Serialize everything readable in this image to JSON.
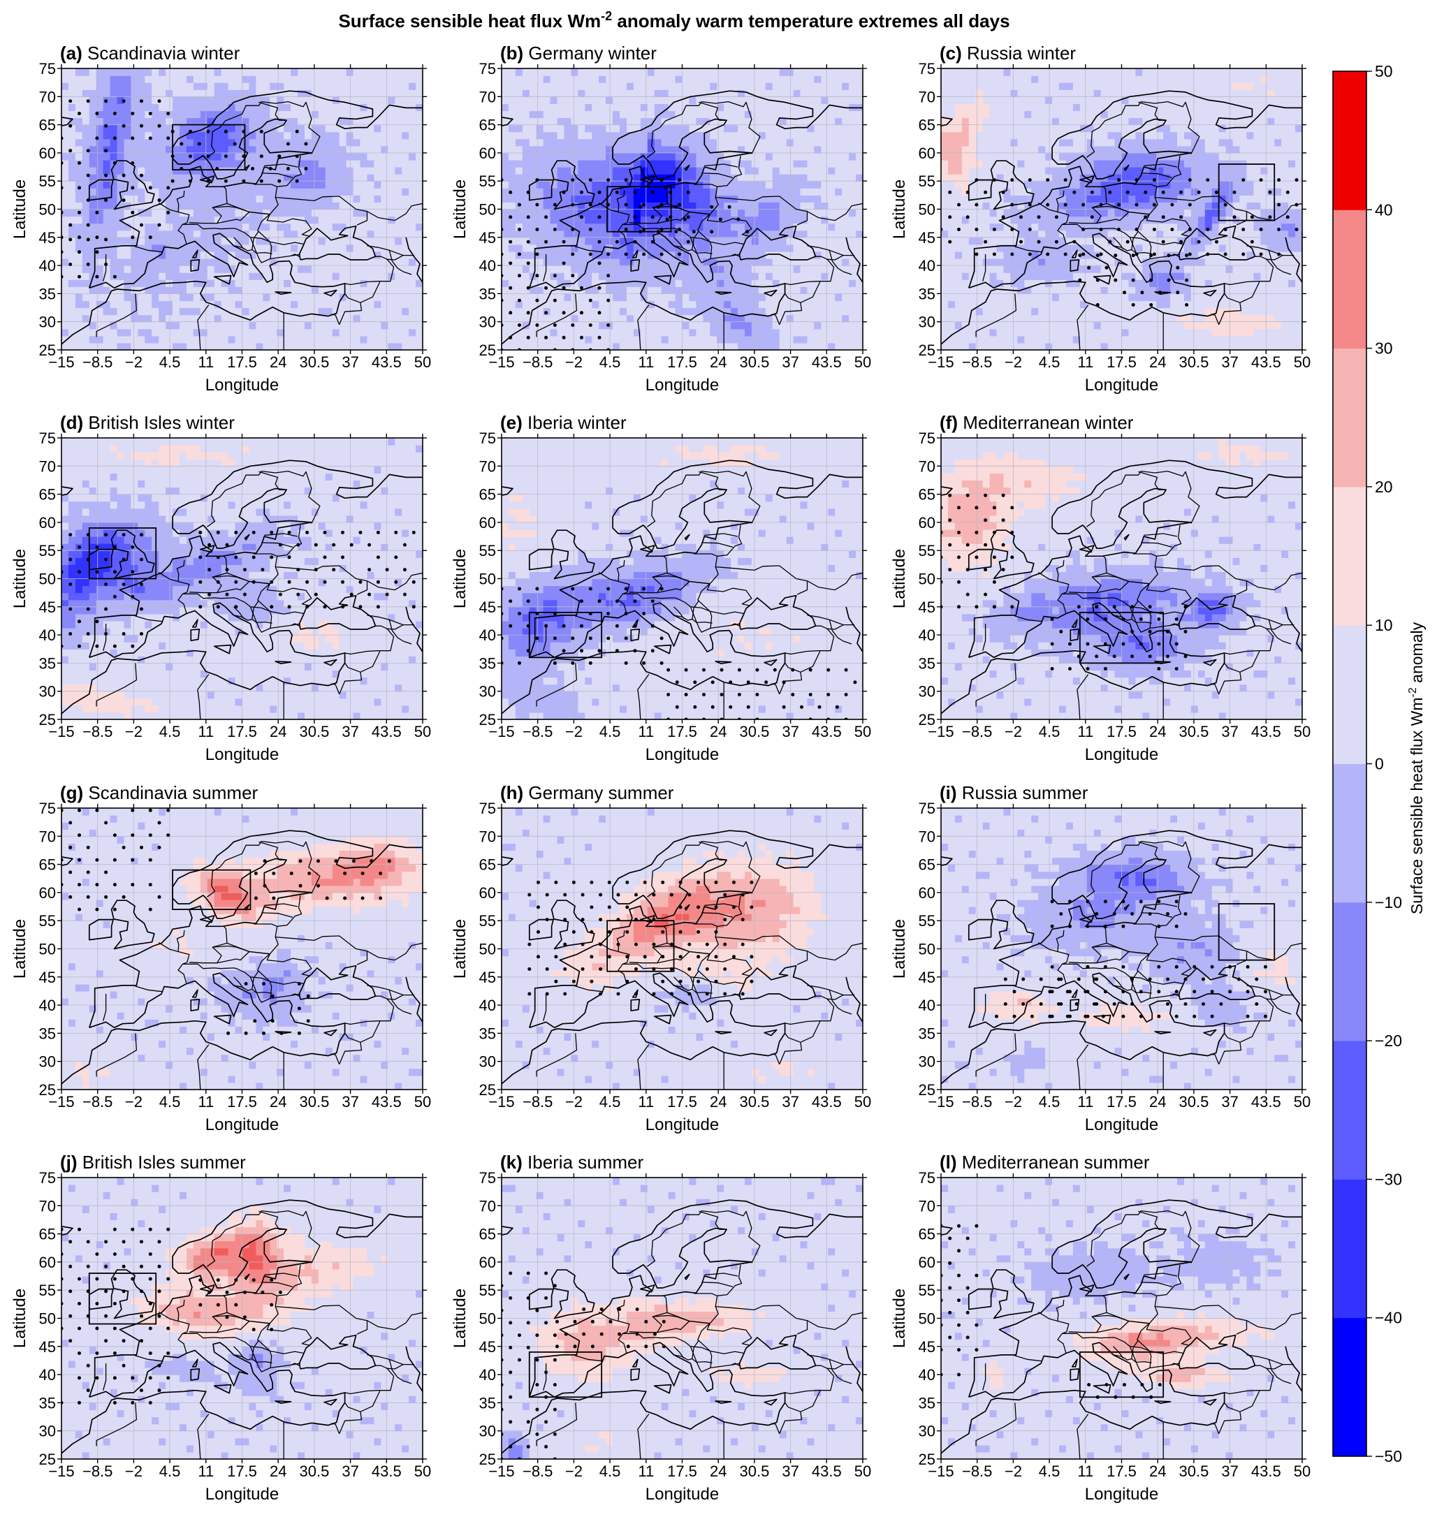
{
  "chart_data": {
    "type": "heatmap",
    "title": "Surface sensible heat flux Wm-2 anomaly warm temperature extremes all days",
    "title_main": "Surface sensible heat flux Wm",
    "title_sup": "-2",
    "title_rest": " anomaly warm temperature extremes all days",
    "xlabel": "Longitude",
    "ylabel": "Latitude",
    "xlim": [
      -15,
      50
    ],
    "ylim": [
      25,
      75
    ],
    "xticks": [
      "−15",
      "−8.5",
      "−2",
      "4.5",
      "11",
      "17.5",
      "24",
      "30.5",
      "37",
      "43.5",
      "50"
    ],
    "xtick_values": [
      -15,
      -8.5,
      -2,
      4.5,
      11,
      17.5,
      24,
      30.5,
      37,
      43.5,
      50
    ],
    "yticks": [
      "25",
      "30",
      "35",
      "40",
      "45",
      "50",
      "55",
      "60",
      "65",
      "70",
      "75"
    ],
    "ytick_values": [
      25,
      30,
      35,
      40,
      45,
      50,
      55,
      60,
      65,
      70,
      75
    ],
    "colorbar": {
      "label_main": "Surface sensible heat flux Wm",
      "label_sup": "-2",
      "label_rest": " anomaly",
      "levels": [
        -50,
        -40,
        -30,
        -20,
        -10,
        0,
        10,
        20,
        30,
        40,
        50
      ],
      "tick_labels": [
        "−50",
        "−40",
        "−30",
        "−20",
        "−10",
        "0",
        "10",
        "20",
        "30",
        "40",
        "50"
      ],
      "colors": [
        "#0000ff",
        "#3333ff",
        "#5c5cff",
        "#8888fb",
        "#b4b4f8",
        "#dcdcf7",
        "#fbdcdc",
        "#f7b4b4",
        "#f48888",
        "#f15c5c",
        "#ee0000"
      ]
    },
    "panels": [
      {
        "letter": "(a)",
        "name": "Scandinavia winter",
        "box": [
          5,
          18,
          57,
          65
        ],
        "field": [
          [
            -25,
            -6,
            52,
            72,
            4.5,
            13,
            -22
          ],
          [
            -28,
            12,
            60,
            64,
            8,
            6,
            40
          ],
          [
            -20,
            -30,
            53,
            50,
            6,
            5,
            -15
          ],
          [
            -10,
            2,
            40,
            44,
            4,
            3,
            8
          ],
          [
            -5,
            11,
            35,
            57,
            16,
            12,
            -20
          ],
          [
            -15,
            30,
            55,
            58,
            6,
            5,
            -20
          ]
        ],
        "stipple": [
          [
            -15,
            5,
            45,
            70
          ],
          [
            -15,
            -5,
            38,
            45
          ],
          [
            5,
            30,
            55,
            66
          ]
        ]
      },
      {
        "letter": "(b)",
        "name": "Germany winter",
        "box": [
          4,
          15.5,
          46,
          54
        ],
        "field": [
          [
            -26,
            5,
            52,
            47,
            14,
            9,
            -25
          ],
          [
            -28,
            16,
            56,
            50,
            10,
            6,
            -15
          ],
          [
            -15,
            15,
            55,
            60,
            5,
            5,
            10
          ],
          [
            -10,
            24,
            40,
            35,
            6,
            5,
            15
          ],
          [
            -14,
            33,
            45,
            52,
            6,
            5,
            -8
          ],
          [
            -18,
            10,
            38,
            67,
            3,
            3,
            10
          ],
          [
            -14,
            28,
            32,
            27,
            6,
            3,
            5
          ]
        ],
        "stipple": [
          [
            -15,
            20,
            42,
            56
          ],
          [
            -15,
            5,
            25,
            42
          ],
          [
            10,
            30,
            46,
            52
          ]
        ]
      },
      {
        "letter": "(c)",
        "name": "Russia winter",
        "box": [
          35,
          45,
          48,
          58
        ],
        "field": [
          [
            -24,
            21,
            55,
            56,
            11,
            5,
            -5
          ],
          [
            -26,
            34,
            44,
            55,
            4,
            3,
            0
          ],
          [
            -14,
            13,
            49,
            53,
            12,
            4,
            0
          ],
          [
            -18,
            25,
            37,
            38,
            4,
            3,
            0
          ],
          [
            -14,
            47,
            47,
            47,
            4,
            3,
            0
          ],
          [
            -12,
            3,
            40,
            41,
            7,
            3,
            0
          ],
          [
            22,
            -13,
            61,
            59,
            4,
            6,
            0
          ],
          [
            14,
            -9,
            65,
            68,
            3,
            4,
            0
          ],
          [
            8,
            40,
            72,
            72,
            10,
            3,
            0
          ],
          [
            12,
            38,
            30,
            30,
            12,
            3,
            0
          ]
        ],
        "stipple": [
          [
            -15,
            50,
            42,
            57
          ],
          [
            10,
            30,
            33,
            42
          ]
        ]
      },
      {
        "letter": "(d)",
        "name": "British Isles winter",
        "box": [
          -10,
          2,
          50,
          59
        ],
        "field": [
          [
            -26,
            -6,
            52,
            56,
            9,
            6,
            0
          ],
          [
            -22,
            -12,
            45,
            54,
            6,
            8,
            0
          ],
          [
            -16,
            12,
            48,
            57,
            12,
            4,
            0
          ],
          [
            -12,
            0,
            48,
            49,
            5,
            3,
            0
          ],
          [
            -10,
            19,
            47,
            44,
            6,
            4,
            0
          ],
          [
            12,
            -8,
            30,
            27,
            12,
            3,
            0
          ],
          [
            10,
            6,
            72,
            72,
            18,
            2.5,
            0
          ],
          [
            10,
            30,
            40,
            40,
            10,
            3,
            0
          ]
        ],
        "stipple": [
          [
            -15,
            0,
            38,
            60
          ],
          [
            10,
            50,
            45,
            60
          ]
        ]
      },
      {
        "letter": "(e)",
        "name": "Iberia winter",
        "box": [
          -10,
          3,
          36,
          44
        ],
        "field": [
          [
            -24,
            -9,
            40,
            44,
            7,
            7,
            0
          ],
          [
            -18,
            5,
            45,
            48,
            10,
            5,
            0
          ],
          [
            -12,
            15,
            45,
            52,
            10,
            5,
            0
          ],
          [
            10,
            25,
            72,
            72,
            16,
            3,
            0
          ],
          [
            8,
            -12,
            60,
            60,
            6,
            10,
            0
          ],
          [
            6,
            30,
            40,
            40,
            16,
            8,
            0
          ],
          [
            -10,
            -8,
            30,
            27,
            6,
            3,
            0
          ]
        ],
        "stipple": [
          [
            -15,
            15,
            35,
            50
          ],
          [
            15,
            50,
            25,
            35
          ]
        ]
      },
      {
        "letter": "(f)",
        "name": "Mediterranean winter",
        "box": [
          10,
          25,
          35,
          44
        ],
        "field": [
          [
            24,
            -10,
            60,
            60,
            7,
            8,
            0
          ],
          [
            14,
            0,
            68,
            67,
            12,
            5,
            0
          ],
          [
            -22,
            22,
            38,
            38,
            8,
            4,
            0
          ],
          [
            -26,
            34,
            44,
            45,
            4,
            3,
            0
          ],
          [
            -18,
            12,
            42,
            45,
            10,
            5,
            0
          ],
          [
            -12,
            0,
            42,
            47,
            6,
            3,
            0
          ],
          [
            10,
            40,
            72,
            72,
            10,
            3,
            0
          ],
          [
            -14,
            20,
            48,
            47,
            12,
            4,
            0
          ]
        ],
        "stipple": [
          [
            -15,
            -2,
            45,
            65
          ],
          [
            5,
            30,
            34,
            46
          ]
        ]
      },
      {
        "letter": "(g)",
        "name": "Scandinavia summer",
        "box": [
          5,
          19,
          57,
          64
        ],
        "field": [
          [
            34,
            15,
            62,
            57,
            6,
            4,
            0
          ],
          [
            24,
            30,
            62,
            63,
            14,
            5,
            0
          ],
          [
            22,
            42,
            64,
            65,
            8,
            5,
            0
          ],
          [
            -12,
            20,
            43,
            40,
            7,
            4,
            0
          ],
          [
            -12,
            25,
            45,
            45,
            4,
            3,
            0
          ],
          [
            8,
            5,
            52,
            50,
            8,
            4,
            0
          ],
          [
            8,
            -10,
            28,
            27,
            5,
            3,
            0
          ]
        ],
        "stipple": [
          [
            -15,
            5,
            57,
            75
          ],
          [
            20,
            45,
            59,
            66
          ],
          [
            15,
            30,
            35,
            45
          ]
        ]
      },
      {
        "letter": "(h)",
        "name": "Germany summer",
        "box": [
          4,
          16,
          46,
          55
        ],
        "field": [
          [
            24,
            12,
            50,
            58,
            10,
            5,
            0
          ],
          [
            20,
            22,
            55,
            58,
            14,
            9,
            0
          ],
          [
            14,
            33,
            56,
            58,
            10,
            8,
            0
          ],
          [
            12,
            0,
            46,
            46,
            6,
            4,
            0
          ],
          [
            -12,
            20,
            42,
            44,
            6,
            3,
            0
          ],
          [
            8,
            35,
            28,
            30,
            10,
            3,
            0
          ],
          [
            10,
            24,
            45,
            44,
            8,
            3,
            0
          ]
        ],
        "stipple": [
          [
            -10,
            30,
            42,
            62
          ]
        ]
      },
      {
        "letter": "(i)",
        "name": "Russia summer",
        "box": [
          35,
          45,
          48,
          58
        ],
        "field": [
          [
            -22,
            20,
            63,
            62,
            10,
            4,
            0
          ],
          [
            -14,
            12,
            55,
            56,
            10,
            5,
            0
          ],
          [
            -12,
            30,
            50,
            50,
            8,
            5,
            0
          ],
          [
            18,
            -2,
            40,
            40,
            6,
            3,
            0
          ],
          [
            12,
            17,
            38,
            38,
            10,
            3,
            0
          ],
          [
            10,
            45,
            48,
            45,
            5,
            5,
            0
          ],
          [
            -10,
            35,
            40,
            40,
            5,
            3,
            0
          ],
          [
            -10,
            0,
            30,
            30,
            3,
            2,
            0
          ]
        ],
        "stipple": [
          [
            5,
            30,
            54,
            60
          ],
          [
            5,
            45,
            38,
            48
          ],
          [
            -5,
            15,
            38,
            45
          ]
        ]
      },
      {
        "letter": "(j)",
        "name": "British Isles summer",
        "box": [
          -10,
          2,
          49,
          58
        ],
        "field": [
          [
            34,
            12,
            60,
            62,
            6,
            4,
            0
          ],
          [
            26,
            20,
            62,
            62,
            4,
            6,
            0
          ],
          [
            22,
            8,
            52,
            50,
            10,
            4,
            0
          ],
          [
            18,
            22,
            53,
            58,
            10,
            8,
            0
          ],
          [
            12,
            35,
            58,
            60,
            10,
            4,
            0
          ],
          [
            -14,
            20,
            43,
            42,
            4,
            5,
            0
          ],
          [
            -8,
            8,
            42,
            40,
            6,
            2,
            0
          ]
        ],
        "stipple": [
          [
            -15,
            5,
            35,
            68
          ],
          [
            10,
            25,
            48,
            58
          ]
        ]
      },
      {
        "letter": "(k)",
        "name": "Iberia summer",
        "box": [
          -10,
          3,
          36,
          44
        ],
        "field": [
          [
            22,
            0,
            46,
            45,
            8,
            6,
            0
          ],
          [
            18,
            12,
            49,
            49,
            8,
            4,
            0
          ],
          [
            16,
            22,
            50,
            50,
            10,
            3,
            0
          ],
          [
            14,
            30,
            40,
            40,
            8,
            2,
            0
          ],
          [
            -18,
            -13,
            27,
            26,
            2.5,
            2.5,
            0
          ],
          [
            8,
            3,
            28,
            28,
            6,
            3,
            0
          ]
        ],
        "stipple": [
          [
            -15,
            -5,
            25,
            60
          ],
          [
            -5,
            15,
            45,
            52
          ]
        ]
      },
      {
        "letter": "(l)",
        "name": "Mediterranean summer",
        "box": [
          10,
          25,
          36,
          44
        ],
        "field": [
          [
            22,
            20,
            45,
            45,
            10,
            3,
            0
          ],
          [
            18,
            30,
            47,
            48,
            14,
            3,
            0
          ],
          [
            22,
            28,
            40,
            40,
            8,
            2,
            0
          ],
          [
            16,
            -5,
            40,
            40,
            2,
            3,
            0
          ],
          [
            -10,
            12,
            58,
            58,
            10,
            4,
            0
          ],
          [
            -8,
            35,
            60,
            60,
            8,
            4,
            0
          ]
        ],
        "stipple": [
          [
            -15,
            -8,
            40,
            68
          ],
          [
            10,
            25,
            36,
            40
          ]
        ]
      }
    ]
  }
}
